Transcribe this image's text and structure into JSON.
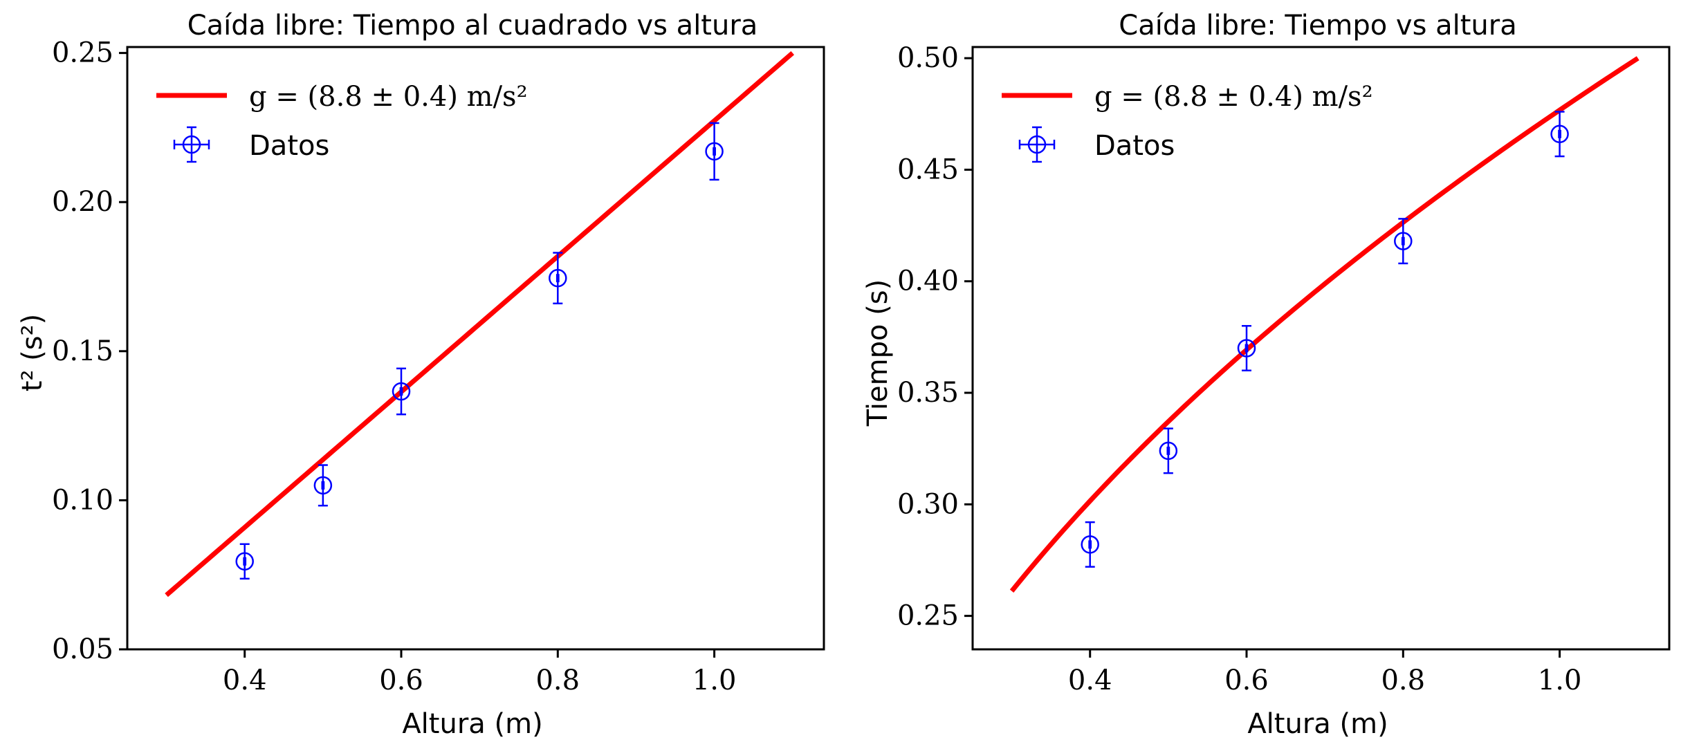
{
  "figure": {
    "background": "#ffffff"
  },
  "colors": {
    "fit": "#ff0000",
    "data": "#0000ff",
    "axes": "#000000"
  },
  "chart_data": [
    {
      "type": "scatter",
      "title": "Caída libre: Tiempo al cuadrado vs altura",
      "xlabel": "Altura (m)",
      "ylabel": "t² (s²)",
      "xlim": [
        0.25,
        1.14
      ],
      "ylim": [
        0.05,
        0.252
      ],
      "xticks": [
        0.4,
        0.6,
        0.8,
        1.0
      ],
      "xtick_labels": [
        "0.4",
        "0.6",
        "0.8",
        "1.0"
      ],
      "yticks": [
        0.05,
        0.1,
        0.15,
        0.2,
        0.25
      ],
      "ytick_labels": [
        "0.05",
        "0.10",
        "0.15",
        "0.20",
        "0.25"
      ],
      "grid": false,
      "legend_position": "upper-left",
      "series": [
        {
          "name": "g = (8.8 ± 0.4) m/s²",
          "kind": "line",
          "model": "2h/g",
          "g": 8.8,
          "x_range": [
            0.3,
            1.1
          ],
          "color": "#ff0000"
        },
        {
          "name": "Datos",
          "kind": "errorbar",
          "marker": "circle-cross",
          "color": "#0000ff",
          "x": [
            0.4,
            0.5,
            0.6,
            0.8,
            1.0
          ],
          "y": [
            0.0795,
            0.105,
            0.1365,
            0.1745,
            0.217
          ],
          "yerr": [
            0.0058,
            0.0068,
            0.0077,
            0.0085,
            0.0095
          ],
          "xerr": [
            0.001,
            0.001,
            0.001,
            0.001,
            0.001
          ]
        }
      ]
    },
    {
      "type": "scatter",
      "title": "Caída libre: Tiempo vs altura",
      "xlabel": "Altura (m)",
      "ylabel": "Tiempo (s)",
      "xlim": [
        0.25,
        1.14
      ],
      "ylim": [
        0.235,
        0.505
      ],
      "xticks": [
        0.4,
        0.6,
        0.8,
        1.0
      ],
      "xtick_labels": [
        "0.4",
        "0.6",
        "0.8",
        "1.0"
      ],
      "yticks": [
        0.25,
        0.3,
        0.35,
        0.4,
        0.45,
        0.5
      ],
      "ytick_labels": [
        "0.25",
        "0.30",
        "0.35",
        "0.40",
        "0.45",
        "0.50"
      ],
      "grid": false,
      "legend_position": "upper-left",
      "series": [
        {
          "name": "g = (8.8 ± 0.4) m/s²",
          "kind": "line",
          "model": "sqrt(2h/g)",
          "g": 8.8,
          "x_range": [
            0.3,
            1.1
          ],
          "color": "#ff0000"
        },
        {
          "name": "Datos",
          "kind": "errorbar",
          "marker": "circle-cross",
          "color": "#0000ff",
          "x": [
            0.4,
            0.5,
            0.6,
            0.8,
            1.0
          ],
          "y": [
            0.282,
            0.324,
            0.37,
            0.418,
            0.466
          ],
          "yerr": [
            0.01,
            0.01,
            0.01,
            0.01,
            0.01
          ],
          "xerr": [
            0.001,
            0.001,
            0.001,
            0.001,
            0.001
          ]
        }
      ]
    }
  ]
}
